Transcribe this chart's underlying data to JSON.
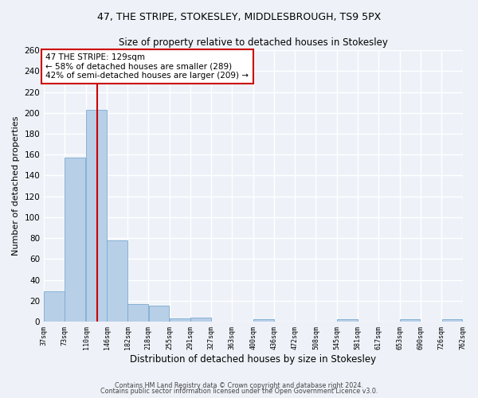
{
  "title": "47, THE STRIPE, STOKESLEY, MIDDLESBROUGH, TS9 5PX",
  "subtitle": "Size of property relative to detached houses in Stokesley",
  "xlabel": "Distribution of detached houses by size in Stokesley",
  "ylabel": "Number of detached properties",
  "bar_color": "#b8cfe8",
  "bar_edge_color": "#7aaad0",
  "vline_color": "#cc0000",
  "vline_x": 129,
  "annotation_text": "47 THE STRIPE: 129sqm\n← 58% of detached houses are smaller (289)\n42% of semi-detached houses are larger (209) →",
  "annotation_box_color": "white",
  "annotation_box_edge": "#cc0000",
  "bin_edges": [
    37,
    73,
    110,
    146,
    182,
    218,
    255,
    291,
    327,
    363,
    400,
    436,
    472,
    508,
    545,
    581,
    617,
    653,
    690,
    726,
    762
  ],
  "bar_heights": [
    29,
    157,
    203,
    78,
    17,
    15,
    3,
    4,
    0,
    0,
    2,
    0,
    0,
    0,
    2,
    0,
    0,
    2,
    0,
    2
  ],
  "ylim": [
    0,
    260
  ],
  "yticks": [
    0,
    20,
    40,
    60,
    80,
    100,
    120,
    140,
    160,
    180,
    200,
    220,
    240,
    260
  ],
  "footer1": "Contains HM Land Registry data © Crown copyright and database right 2024.",
  "footer2": "Contains public sector information licensed under the Open Government Licence v3.0.",
  "background_color": "#eef2f8",
  "grid_color": "white"
}
